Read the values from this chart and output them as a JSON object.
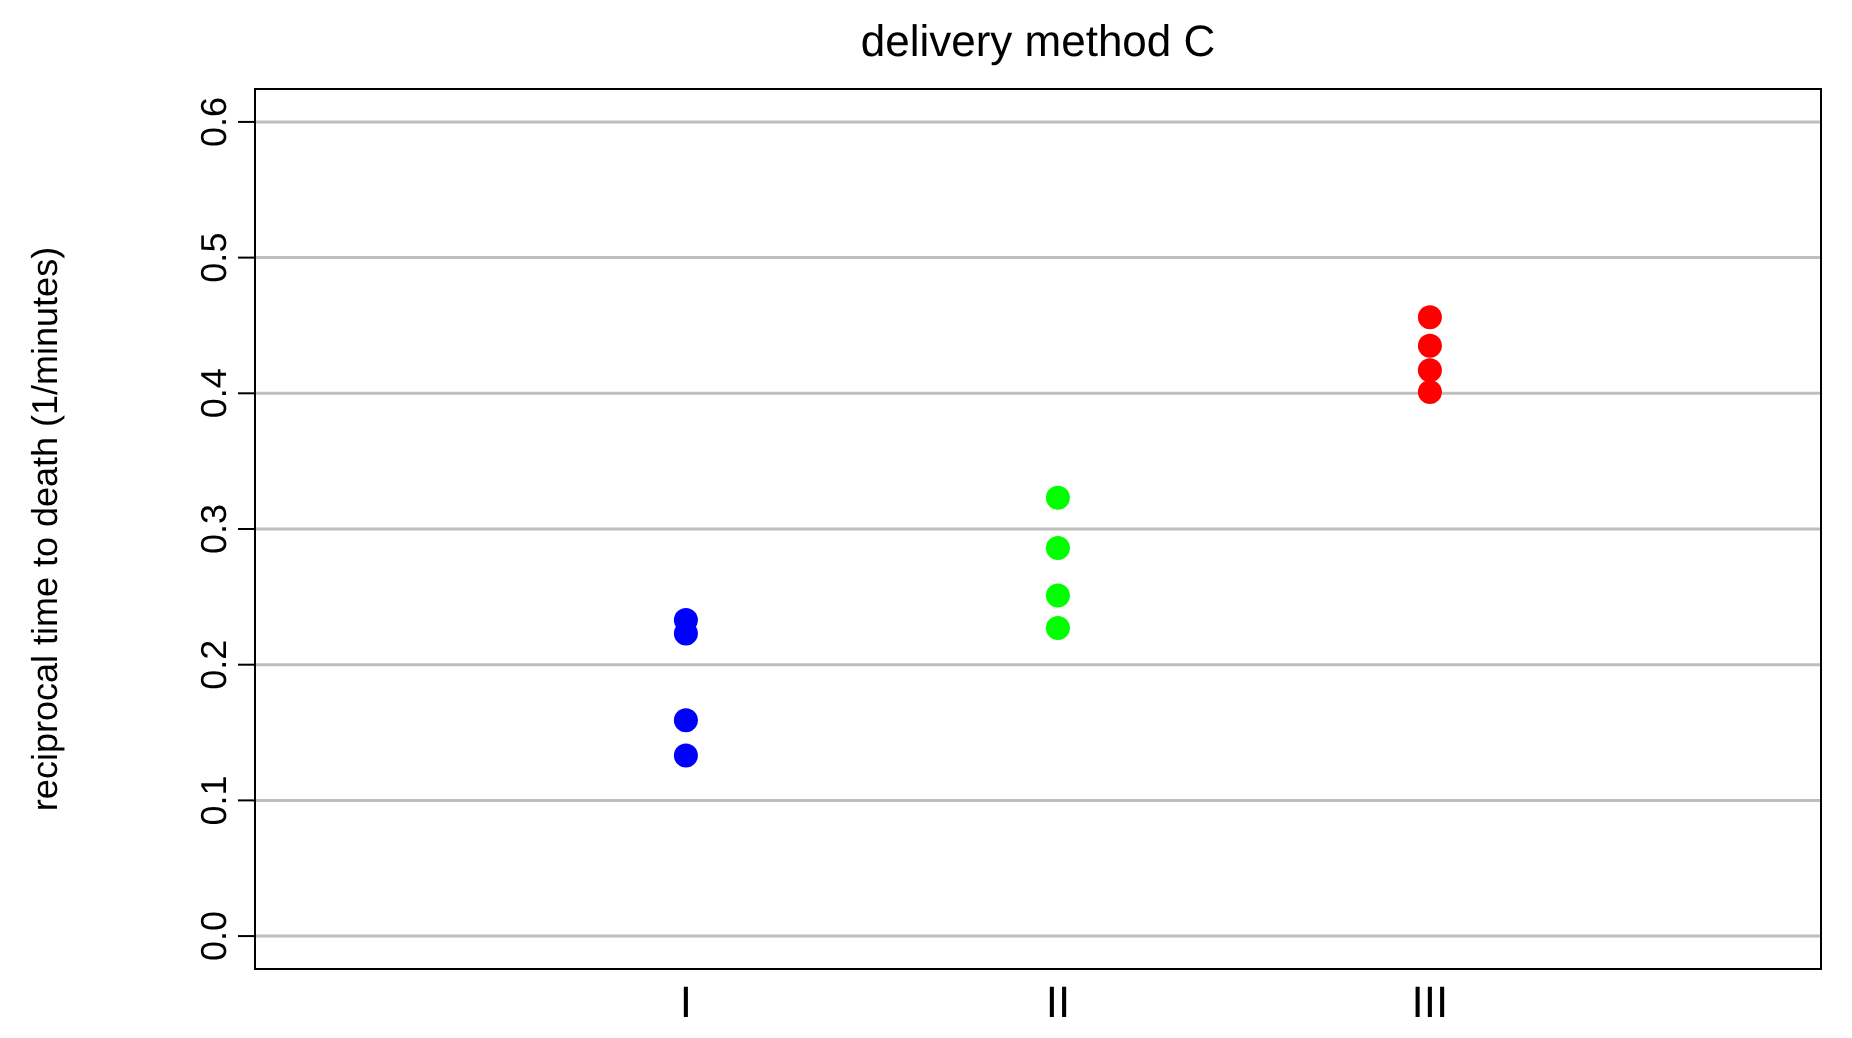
{
  "chart_data": {
    "type": "scatter",
    "title": "delivery method C",
    "ylabel": "reciprocal time to death (1/minutes)",
    "categories": [
      "I",
      "II",
      "III"
    ],
    "series": [
      {
        "color": "#0000ff",
        "x": [
          "I",
          "I",
          "I",
          "I"
        ],
        "values": [
          0.233,
          0.223,
          0.159,
          0.133
        ]
      },
      {
        "color": "#00ff00",
        "x": [
          "II",
          "II",
          "II",
          "II"
        ],
        "values": [
          0.323,
          0.286,
          0.251,
          0.227
        ]
      },
      {
        "color": "#ff0000",
        "x": [
          "III",
          "III",
          "III",
          "III"
        ],
        "values": [
          0.456,
          0.435,
          0.417,
          0.401
        ]
      }
    ],
    "ylim": [
      -0.025,
      0.625
    ],
    "yticks": [
      {
        "value": 0,
        "label": "0.0"
      },
      {
        "value": 0.1,
        "label": "0.1"
      },
      {
        "value": 0.2,
        "label": "0.2"
      },
      {
        "value": 0.3,
        "label": "0.3"
      },
      {
        "value": 0.4,
        "label": "0.4"
      },
      {
        "value": 0.5,
        "label": "0.5"
      },
      {
        "value": 0.6,
        "label": "0.6"
      }
    ],
    "grid": "y",
    "marker": "circle"
  }
}
